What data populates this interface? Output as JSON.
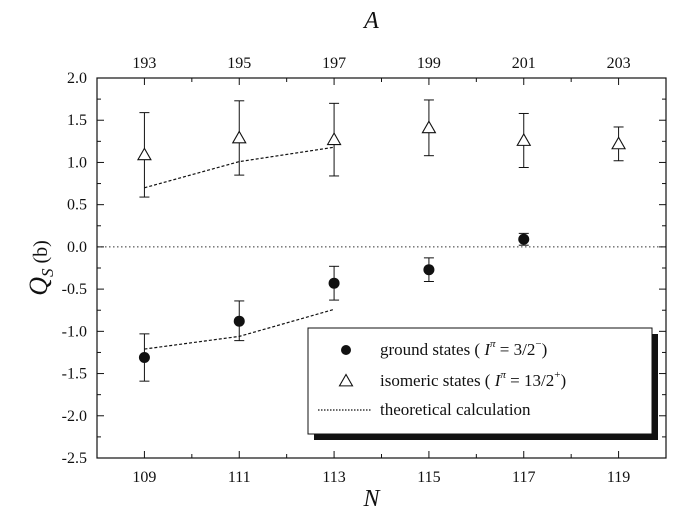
{
  "chart_data": {
    "type": "scatter",
    "xlabel": "N",
    "top_xlabel": "A",
    "ylabel": "Q",
    "ylabel_sub": "S",
    "ylabel_unit": " (b)",
    "xlim": [
      108,
      120
    ],
    "ylim": [
      -2.5,
      2.0
    ],
    "x_ticks": [
      109,
      111,
      113,
      115,
      117,
      119
    ],
    "top_ticks": [
      {
        "x": 109,
        "label": "193"
      },
      {
        "x": 111,
        "label": "195"
      },
      {
        "x": 113,
        "label": "197"
      },
      {
        "x": 115,
        "label": "199"
      },
      {
        "x": 117,
        "label": "201"
      },
      {
        "x": 119,
        "label": "203"
      }
    ],
    "y_ticks": [
      2.0,
      1.5,
      1.0,
      0.5,
      0.0,
      -0.5,
      -1.0,
      -1.5,
      -2.0,
      -2.5
    ],
    "y_tick_labels": [
      "2.0",
      "1.5",
      "1.0",
      "0.5",
      "0.0",
      "-0.5",
      "-1.0",
      "-1.5",
      "-2.0",
      "-2.5"
    ],
    "x_tick_labels": [
      "109",
      "111",
      "113",
      "115",
      "117",
      "119"
    ],
    "zero_line": true,
    "series": [
      {
        "name": "ground states",
        "marker": "filled-circle",
        "points": [
          {
            "x": 109,
            "y": -1.31,
            "err_lo": 0.28,
            "err_hi": 0.28
          },
          {
            "x": 111,
            "y": -0.88,
            "err_lo": 0.23,
            "err_hi": 0.24
          },
          {
            "x": 113,
            "y": -0.43,
            "err_lo": 0.2,
            "err_hi": 0.2
          },
          {
            "x": 115,
            "y": -0.27,
            "err_lo": 0.14,
            "err_hi": 0.14
          },
          {
            "x": 117,
            "y": 0.09,
            "err_lo": 0.07,
            "err_hi": 0.07
          }
        ]
      },
      {
        "name": "isomeric states",
        "marker": "open-triangle",
        "points": [
          {
            "x": 109,
            "y": 1.09,
            "err_lo": 0.5,
            "err_hi": 0.5
          },
          {
            "x": 111,
            "y": 1.29,
            "err_lo": 0.44,
            "err_hi": 0.44
          },
          {
            "x": 113,
            "y": 1.27,
            "err_lo": 0.43,
            "err_hi": 0.43
          },
          {
            "x": 115,
            "y": 1.41,
            "err_lo": 0.33,
            "err_hi": 0.33
          },
          {
            "x": 117,
            "y": 1.26,
            "err_lo": 0.32,
            "err_hi": 0.32
          },
          {
            "x": 119,
            "y": 1.22,
            "err_lo": 0.2,
            "err_hi": 0.2
          }
        ]
      }
    ],
    "theory_lines": [
      {
        "points": [
          [
            109,
            0.7
          ],
          [
            111,
            1.01
          ],
          [
            113,
            1.18
          ]
        ]
      },
      {
        "points": [
          [
            109,
            -1.21
          ],
          [
            111,
            -1.06
          ],
          [
            113,
            -0.74
          ]
        ]
      }
    ],
    "legend": {
      "placement": "bottom-right",
      "entries": [
        {
          "marker": "filled-circle",
          "text": "ground states ( ",
          "pi_label": "I",
          "pi_sup": "π",
          "value": " = 3/2",
          "sign": "−",
          "close": ")"
        },
        {
          "marker": "open-triangle",
          "text": "isomeric states ( ",
          "pi_label": "I",
          "pi_sup": "π",
          "value": " = 13/2",
          "sign": "+",
          "close": ")"
        },
        {
          "marker": "dotted-line",
          "text": "theoretical calculation"
        }
      ]
    }
  }
}
